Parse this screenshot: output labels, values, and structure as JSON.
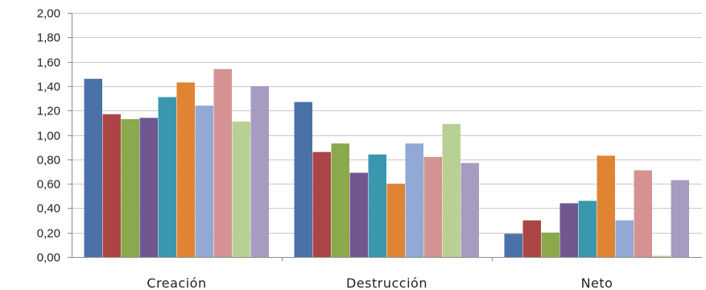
{
  "chart_data": {
    "type": "bar",
    "categories": [
      "Creación",
      "Destrucción",
      "Neto"
    ],
    "ylim": [
      0,
      2
    ],
    "y_ticks": [
      "0,00",
      "0,20",
      "0,40",
      "0,60",
      "0,80",
      "1,00",
      "1,20",
      "1,40",
      "1,60",
      "1,80",
      "2,00"
    ],
    "grid": true,
    "legend": "none",
    "series": [
      {
        "color": "#4a72a8",
        "values": [
          1.46,
          1.27,
          0.19
        ]
      },
      {
        "color": "#ac4545",
        "values": [
          1.17,
          0.86,
          0.3
        ]
      },
      {
        "color": "#8aa84c",
        "values": [
          1.13,
          0.93,
          0.2
        ]
      },
      {
        "color": "#71578f",
        "values": [
          1.14,
          0.69,
          0.44
        ]
      },
      {
        "color": "#3a97ae",
        "values": [
          1.31,
          0.84,
          0.46
        ]
      },
      {
        "color": "#e08433",
        "values": [
          1.43,
          0.6,
          0.83
        ]
      },
      {
        "color": "#93a9d5",
        "values": [
          1.24,
          0.93,
          0.3
        ]
      },
      {
        "color": "#d49392",
        "values": [
          1.54,
          0.82,
          0.71
        ]
      },
      {
        "color": "#b9d095",
        "values": [
          1.11,
          1.09,
          0.01
        ]
      },
      {
        "color": "#a79bc2",
        "values": [
          1.4,
          0.77,
          0.63
        ]
      }
    ]
  }
}
